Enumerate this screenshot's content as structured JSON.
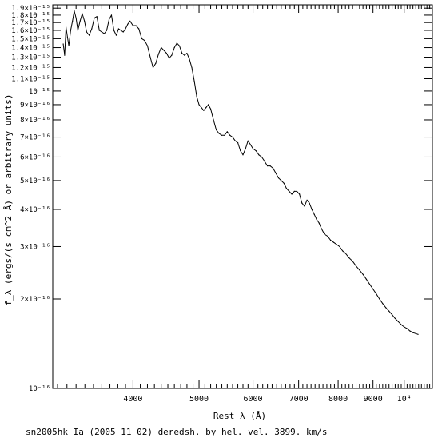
{
  "chart_data": {
    "type": "line",
    "title": "",
    "xlabel": "Rest λ (Å)",
    "ylabel": "f_λ (ergs/(s cm^2 Å) or arbitrary units)",
    "caption": "sn2005hk Ia (2005 11 02) deredsh. by hel. vel.  3899. km/s",
    "x_scale": "log",
    "y_scale": "log",
    "xlim": [
      3050,
      11000
    ],
    "ylim": [
      1e-16,
      1.95e-15
    ],
    "grid": false,
    "legend": "none",
    "x_ticks": [
      {
        "value": 4000,
        "label": "4000"
      },
      {
        "value": 5000,
        "label": "5000"
      },
      {
        "value": 6000,
        "label": "6000"
      },
      {
        "value": 7000,
        "label": "7000"
      },
      {
        "value": 8000,
        "label": "8000"
      },
      {
        "value": 9000,
        "label": "9000"
      },
      {
        "value": 10000,
        "label": "10⁴"
      }
    ],
    "y_ticks": [
      {
        "value": 1e-16,
        "label": "10⁻¹⁶"
      },
      {
        "value": 2e-16,
        "label": "2×10⁻¹⁶"
      },
      {
        "value": 3e-16,
        "label": "3×10⁻¹⁶"
      },
      {
        "value": 4e-16,
        "label": "4×10⁻¹⁶"
      },
      {
        "value": 5e-16,
        "label": "5×10⁻¹⁶"
      },
      {
        "value": 6e-16,
        "label": "6×10⁻¹⁶"
      },
      {
        "value": 7e-16,
        "label": "7×10⁻¹⁶"
      },
      {
        "value": 8e-16,
        "label": "8×10⁻¹⁶"
      },
      {
        "value": 9e-16,
        "label": "9×10⁻¹⁶"
      },
      {
        "value": 1e-15,
        "label": "10⁻¹⁵"
      },
      {
        "value": 1.1e-15,
        "label": "1.1×10⁻¹⁵"
      },
      {
        "value": 1.2e-15,
        "label": "1.2×10⁻¹⁵"
      },
      {
        "value": 1.3e-15,
        "label": "1.3×10⁻¹⁵"
      },
      {
        "value": 1.4e-15,
        "label": "1.4×10⁻¹⁵"
      },
      {
        "value": 1.5e-15,
        "label": "1.5×10⁻¹⁵"
      },
      {
        "value": 1.6e-15,
        "label": "1.6×10⁻¹⁵"
      },
      {
        "value": 1.7e-15,
        "label": "1.7×10⁻¹⁵"
      },
      {
        "value": 1.8e-15,
        "label": "1.8×10⁻¹⁵"
      },
      {
        "value": 1.9e-15,
        "label": "1.9×10⁻¹⁵"
      }
    ],
    "series": [
      {
        "color": "#000000",
        "x": [
          3160,
          3175,
          3190,
          3205,
          3220,
          3240,
          3260,
          3280,
          3300,
          3320,
          3345,
          3370,
          3395,
          3420,
          3450,
          3480,
          3510,
          3540,
          3570,
          3600,
          3630,
          3660,
          3690,
          3720,
          3750,
          3780,
          3810,
          3840,
          3870,
          3900,
          3930,
          3960,
          4000,
          4040,
          4080,
          4120,
          4160,
          4200,
          4240,
          4280,
          4320,
          4360,
          4400,
          4440,
          4480,
          4520,
          4560,
          4600,
          4640,
          4680,
          4720,
          4760,
          4800,
          4840,
          4880,
          4920,
          4960,
          5000,
          5040,
          5080,
          5120,
          5160,
          5200,
          5250,
          5300,
          5350,
          5400,
          5450,
          5500,
          5550,
          5600,
          5650,
          5700,
          5750,
          5800,
          5850,
          5900,
          5950,
          6000,
          6060,
          6120,
          6180,
          6240,
          6300,
          6360,
          6420,
          6480,
          6540,
          6600,
          6660,
          6720,
          6780,
          6840,
          6900,
          6960,
          7020,
          7080,
          7140,
          7200,
          7260,
          7320,
          7380,
          7440,
          7500,
          7560,
          7640,
          7720,
          7800,
          7880,
          7960,
          8040,
          8120,
          8200,
          8300,
          8400,
          8500,
          8600,
          8700,
          8800,
          8900,
          9000,
          9100,
          9200,
          9300,
          9400,
          9500,
          9600,
          9700,
          9800,
          9900,
          10000,
          10100,
          10200,
          10300,
          10400,
          10480
        ],
        "y": [
          1.44e-15,
          1.32e-15,
          1.64e-15,
          1.52e-15,
          1.42e-15,
          1.6e-15,
          1.72e-15,
          1.86e-15,
          1.76e-15,
          1.6e-15,
          1.72e-15,
          1.82e-15,
          1.72e-15,
          1.58e-15,
          1.54e-15,
          1.62e-15,
          1.76e-15,
          1.78e-15,
          1.6e-15,
          1.58e-15,
          1.56e-15,
          1.6e-15,
          1.74e-15,
          1.8e-15,
          1.6e-15,
          1.54e-15,
          1.62e-15,
          1.6e-15,
          1.58e-15,
          1.62e-15,
          1.68e-15,
          1.72e-15,
          1.66e-15,
          1.66e-15,
          1.62e-15,
          1.5e-15,
          1.48e-15,
          1.42e-15,
          1.3e-15,
          1.2e-15,
          1.24e-15,
          1.33e-15,
          1.4e-15,
          1.37e-15,
          1.34e-15,
          1.29e-15,
          1.32e-15,
          1.4e-15,
          1.45e-15,
          1.42e-15,
          1.34e-15,
          1.32e-15,
          1.34e-15,
          1.28e-15,
          1.2e-15,
          1.08e-15,
          9.6e-16,
          9e-16,
          8.8e-16,
          8.6e-16,
          8.8e-16,
          9e-16,
          8.7e-16,
          8e-16,
          7.4e-16,
          7.2e-16,
          7.1e-16,
          7.1e-16,
          7.3e-16,
          7.1e-16,
          7e-16,
          6.8e-16,
          6.7e-16,
          6.3e-16,
          6.1e-16,
          6.4e-16,
          6.8e-16,
          6.6e-16,
          6.4e-16,
          6.3e-16,
          6.1e-16,
          6e-16,
          5.8e-16,
          5.6e-16,
          5.6e-16,
          5.5e-16,
          5.3e-16,
          5.1e-16,
          5e-16,
          4.9e-16,
          4.7e-16,
          4.6e-16,
          4.5e-16,
          4.6e-16,
          4.6e-16,
          4.5e-16,
          4.2e-16,
          4.1e-16,
          4.3e-16,
          4.2e-16,
          4e-16,
          3.85e-16,
          3.7e-16,
          3.6e-16,
          3.45e-16,
          3.3e-16,
          3.25e-16,
          3.15e-16,
          3.1e-16,
          3.05e-16,
          3e-16,
          2.9e-16,
          2.85e-16,
          2.75e-16,
          2.68e-16,
          2.58e-16,
          2.5e-16,
          2.42e-16,
          2.33e-16,
          2.24e-16,
          2.16e-16,
          2.08e-16,
          2e-16,
          1.93e-16,
          1.87e-16,
          1.82e-16,
          1.77e-16,
          1.72e-16,
          1.68e-16,
          1.64e-16,
          1.61e-16,
          1.59e-16,
          1.56e-16,
          1.54e-16,
          1.53e-16,
          1.52e-16
        ]
      }
    ]
  }
}
